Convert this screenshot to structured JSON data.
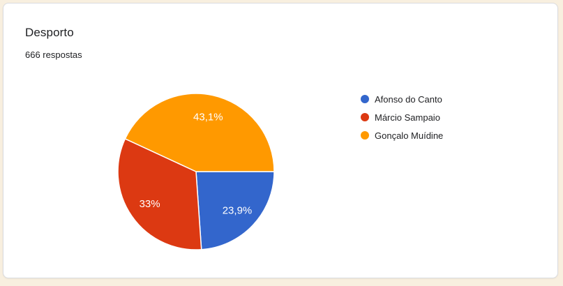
{
  "card": {
    "title": "Desporto",
    "responses": "666 respostas"
  },
  "colors": {
    "page_bg": "#f8efdf",
    "card_bg": "#ffffff",
    "card_border": "#dadce0",
    "text": "#202124",
    "slice_label_text": "#ffffff",
    "slice_separator": "#ffffff"
  },
  "chart_data": {
    "type": "pie",
    "title": "Desporto",
    "subtitle": "666 respostas",
    "start_angle_deg": 90,
    "direction": "clockwise",
    "legend_position": "right",
    "slice_label_radius_ratio": 0.72,
    "series": [
      {
        "name": "Afonso do Canto",
        "value": 23.9,
        "label": "23,9%",
        "color": "#3366cc"
      },
      {
        "name": "Márcio Sampaio",
        "value": 33,
        "label": "33%",
        "color": "#dc3912"
      },
      {
        "name": "Gonçalo Muídine",
        "value": 43.1,
        "label": "43,1%",
        "color": "#ff9900"
      }
    ]
  }
}
